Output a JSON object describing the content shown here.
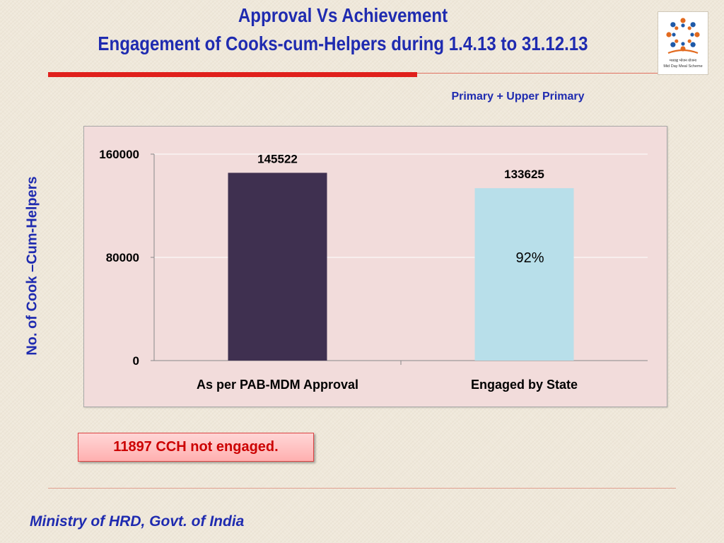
{
  "header": {
    "title_line1": "Approval Vs Achievement",
    "title_line2": "Engagement  of Cooks-cum-Helpers  during 1.4.13 to 31.12.13",
    "subtitle": "Primary + Upper Primary"
  },
  "logo": {
    "icon": "mid-day-meal-logo",
    "text_hindi": "मध्याह्न भोजन योजना",
    "text_en": "Mid Day Meal Scheme"
  },
  "chart_data": {
    "type": "bar",
    "categories": [
      "As per PAB-MDM Approval",
      "Engaged by State"
    ],
    "values": [
      145522,
      133625
    ],
    "data_labels": [
      "145522",
      "133625"
    ],
    "bar_colors": [
      "#3f3050",
      "#b8dfea"
    ],
    "ylabel": "No. of  Cook –Cum-Helpers",
    "ylim": [
      0,
      160000
    ],
    "yticks": [
      "0",
      "80000",
      "160000"
    ],
    "ytick_values": [
      0,
      80000,
      160000
    ],
    "grid": true,
    "annotation": "92%"
  },
  "note": {
    "text": "11897 CCH not engaged."
  },
  "footer": {
    "text": "Ministry of HRD, Govt. of India"
  },
  "colors": {
    "title": "#1f2bb0",
    "accent_rule": "#e0201c",
    "plot_bg": "#f2dcdb",
    "note_text": "#cc0000"
  }
}
